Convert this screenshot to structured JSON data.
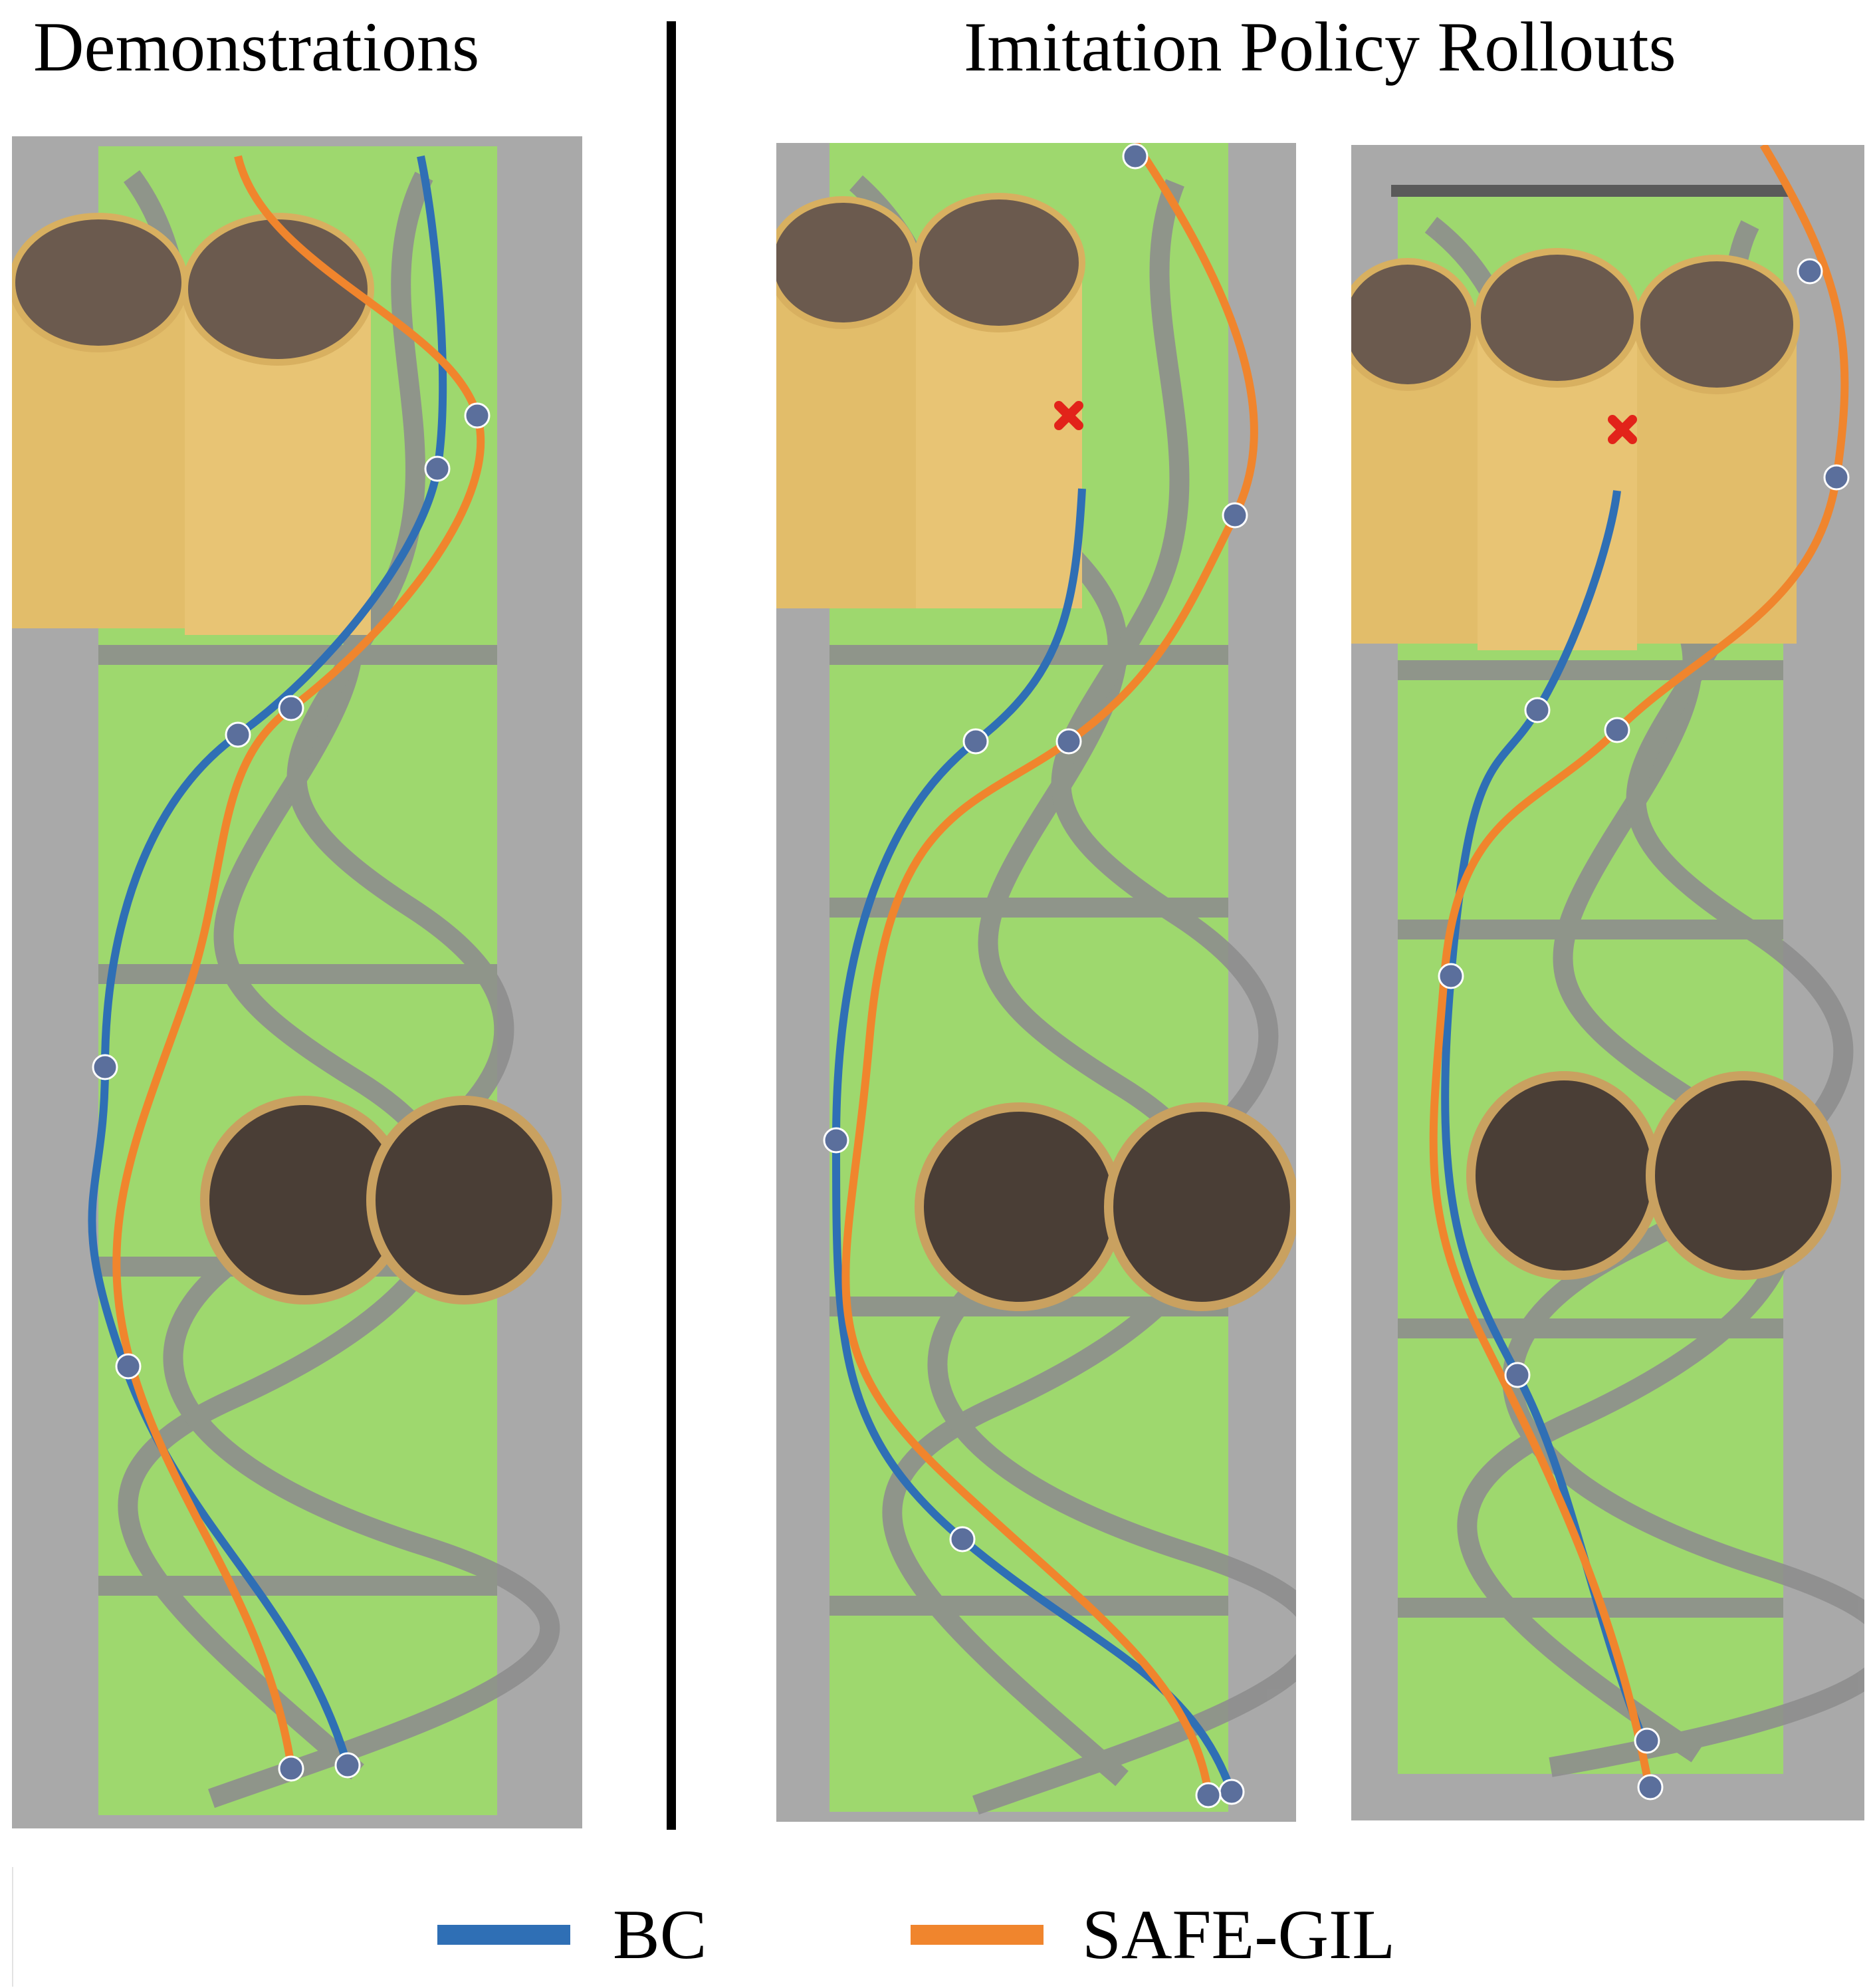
{
  "titles": {
    "left": "Demonstrations",
    "right": "Imitation Policy Rollouts"
  },
  "legend": {
    "bc_label": "BC",
    "safe_gil_label": "SAFE-GIL"
  },
  "colors": {
    "bc": "#2f6fb5",
    "safe_gil": "#f0852d",
    "collision_marker": "#e2231a",
    "mat_green": "#9ed86e",
    "road_gray": "#8e8e8e",
    "floor_gray": "#a9a9a9",
    "tube": "#e2bd6a",
    "tube_inside": "#6b5a4e"
  },
  "icons": {
    "drone": "quadrotor-icon",
    "collision": "red-x-icon"
  }
}
